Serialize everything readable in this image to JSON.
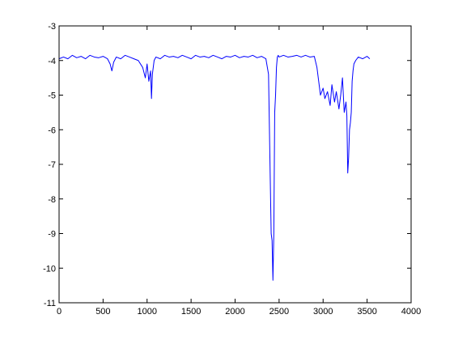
{
  "chart_data": {
    "type": "line",
    "title": "",
    "xlabel": "",
    "ylabel": "",
    "xlim": [
      0,
      4000
    ],
    "ylim": [
      -11,
      -3
    ],
    "x_ticks": [
      0,
      500,
      1000,
      1500,
      2000,
      2500,
      3000,
      3500,
      4000
    ],
    "x_tick_labels": [
      "0",
      "500",
      "1000",
      "1500",
      "2000",
      "2500",
      "3000",
      "3500",
      "4000"
    ],
    "y_ticks": [
      -3,
      -4,
      -5,
      -6,
      -7,
      -8,
      -9,
      -10,
      -11
    ],
    "y_tick_labels": [
      "-3",
      "-4",
      "-5",
      "-6",
      "-7",
      "-8",
      "-9",
      "-10",
      "-11"
    ],
    "grid": false,
    "legend": "none",
    "series": [
      {
        "color": "#0000ff",
        "x": [
          0,
          50,
          100,
          150,
          200,
          250,
          300,
          350,
          400,
          450,
          500,
          550,
          580,
          600,
          620,
          650,
          700,
          750,
          800,
          850,
          900,
          950,
          980,
          1000,
          1020,
          1040,
          1050,
          1060,
          1080,
          1100,
          1150,
          1200,
          1250,
          1300,
          1350,
          1400,
          1450,
          1500,
          1550,
          1600,
          1650,
          1700,
          1750,
          1800,
          1850,
          1900,
          1950,
          2000,
          2050,
          2100,
          2150,
          2200,
          2250,
          2300,
          2350,
          2380,
          2400,
          2410,
          2420,
          2430,
          2440,
          2450,
          2460,
          2470,
          2480,
          2490,
          2500,
          2550,
          2600,
          2650,
          2700,
          2750,
          2800,
          2850,
          2900,
          2930,
          2950,
          2970,
          3000,
          3020,
          3050,
          3080,
          3100,
          3130,
          3150,
          3180,
          3200,
          3220,
          3240,
          3260,
          3270,
          3280,
          3290,
          3300,
          3310,
          3320,
          3330,
          3340,
          3350,
          3370,
          3400,
          3450,
          3500,
          3530
        ],
        "y": [
          -3.95,
          -3.9,
          -3.95,
          -3.85,
          -3.92,
          -3.88,
          -3.95,
          -3.85,
          -3.9,
          -3.92,
          -3.88,
          -3.95,
          -4.1,
          -4.3,
          -4.05,
          -3.9,
          -3.95,
          -3.85,
          -3.9,
          -3.95,
          -4.0,
          -4.2,
          -4.5,
          -4.1,
          -4.6,
          -4.3,
          -5.1,
          -4.4,
          -4.0,
          -3.9,
          -3.95,
          -3.85,
          -3.9,
          -3.88,
          -3.92,
          -3.85,
          -3.9,
          -3.95,
          -3.85,
          -3.9,
          -3.88,
          -3.92,
          -3.85,
          -3.9,
          -3.95,
          -3.88,
          -3.9,
          -3.85,
          -3.92,
          -3.88,
          -3.9,
          -3.85,
          -3.92,
          -3.88,
          -3.95,
          -4.4,
          -7.5,
          -9.0,
          -9.2,
          -10.35,
          -9.0,
          -5.5,
          -5.0,
          -4.2,
          -3.9,
          -3.85,
          -3.9,
          -3.85,
          -3.9,
          -3.88,
          -3.85,
          -3.9,
          -3.85,
          -3.9,
          -3.88,
          -4.2,
          -4.6,
          -5.0,
          -4.8,
          -5.1,
          -4.9,
          -5.3,
          -4.7,
          -5.2,
          -4.9,
          -5.4,
          -5.0,
          -4.5,
          -5.5,
          -5.2,
          -5.6,
          -7.25,
          -6.8,
          -6.0,
          -5.8,
          -5.5,
          -4.6,
          -4.3,
          -4.1,
          -4.0,
          -3.9,
          -3.95,
          -3.88,
          -3.95
        ]
      }
    ]
  }
}
